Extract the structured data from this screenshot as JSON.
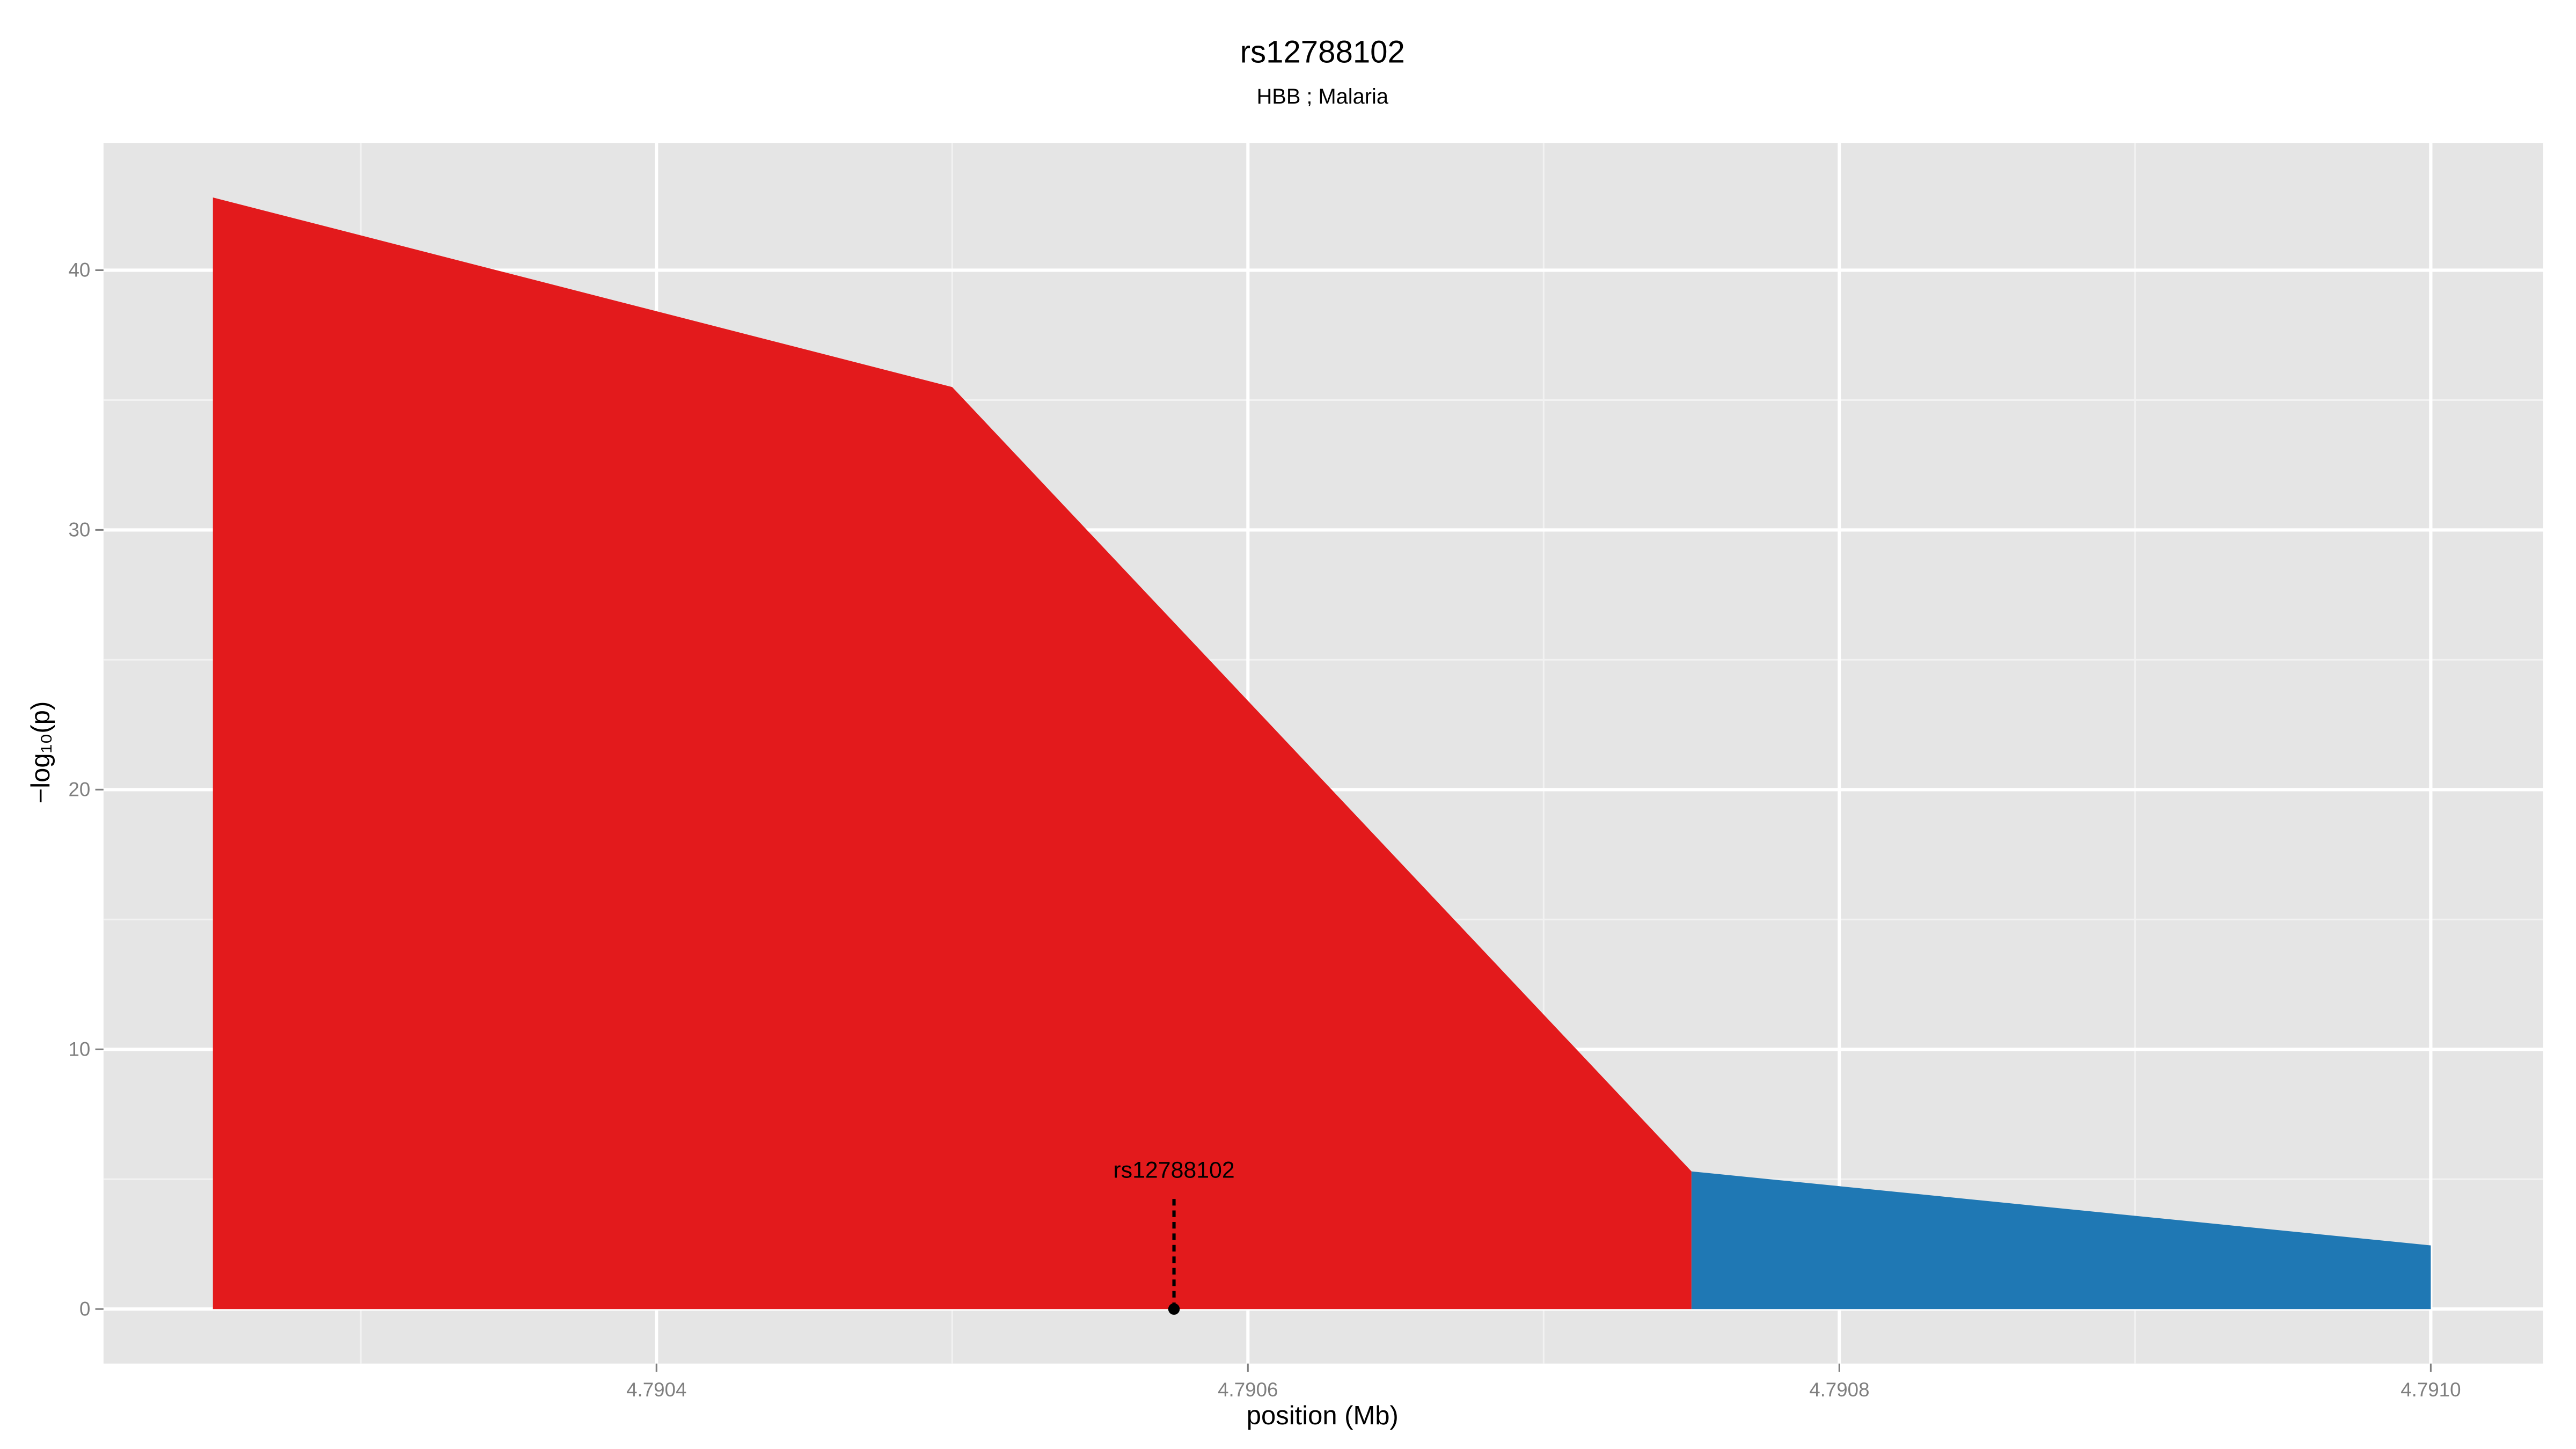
{
  "chart_data": {
    "type": "area",
    "title": "rs12788102",
    "subtitle": "HBB ; Malaria",
    "x_label": "position (Mb)",
    "y_label": "−log₁₀(p)",
    "series": [
      {
        "color": "#e31a1c",
        "x": [
          4.79025,
          4.7905,
          4.79075
        ],
        "values": [
          42.8,
          35.5,
          5.3
        ]
      },
      {
        "color": "#1f78b4",
        "x": [
          4.79075,
          4.791
        ],
        "values": [
          5.3,
          2.45
        ]
      }
    ],
    "annotations": [
      {
        "label": "rs12788102",
        "x": 4.790575,
        "y": 0
      }
    ],
    "xlim": [
      4.790213,
      4.791038
    ],
    "ylim": [
      -2.1,
      44.9
    ],
    "xticks": [
      4.7904,
      4.7906,
      4.7908,
      {
        "value": 4.791,
        "label": "4.7910"
      }
    ],
    "yticks": [
      0,
      10,
      20,
      30,
      40
    ],
    "x_minor_ticks": [
      4.7903,
      4.7905,
      4.7907,
      4.7909
    ],
    "y_minor_ticks": [
      5,
      15,
      25,
      35
    ],
    "grid": true
  }
}
